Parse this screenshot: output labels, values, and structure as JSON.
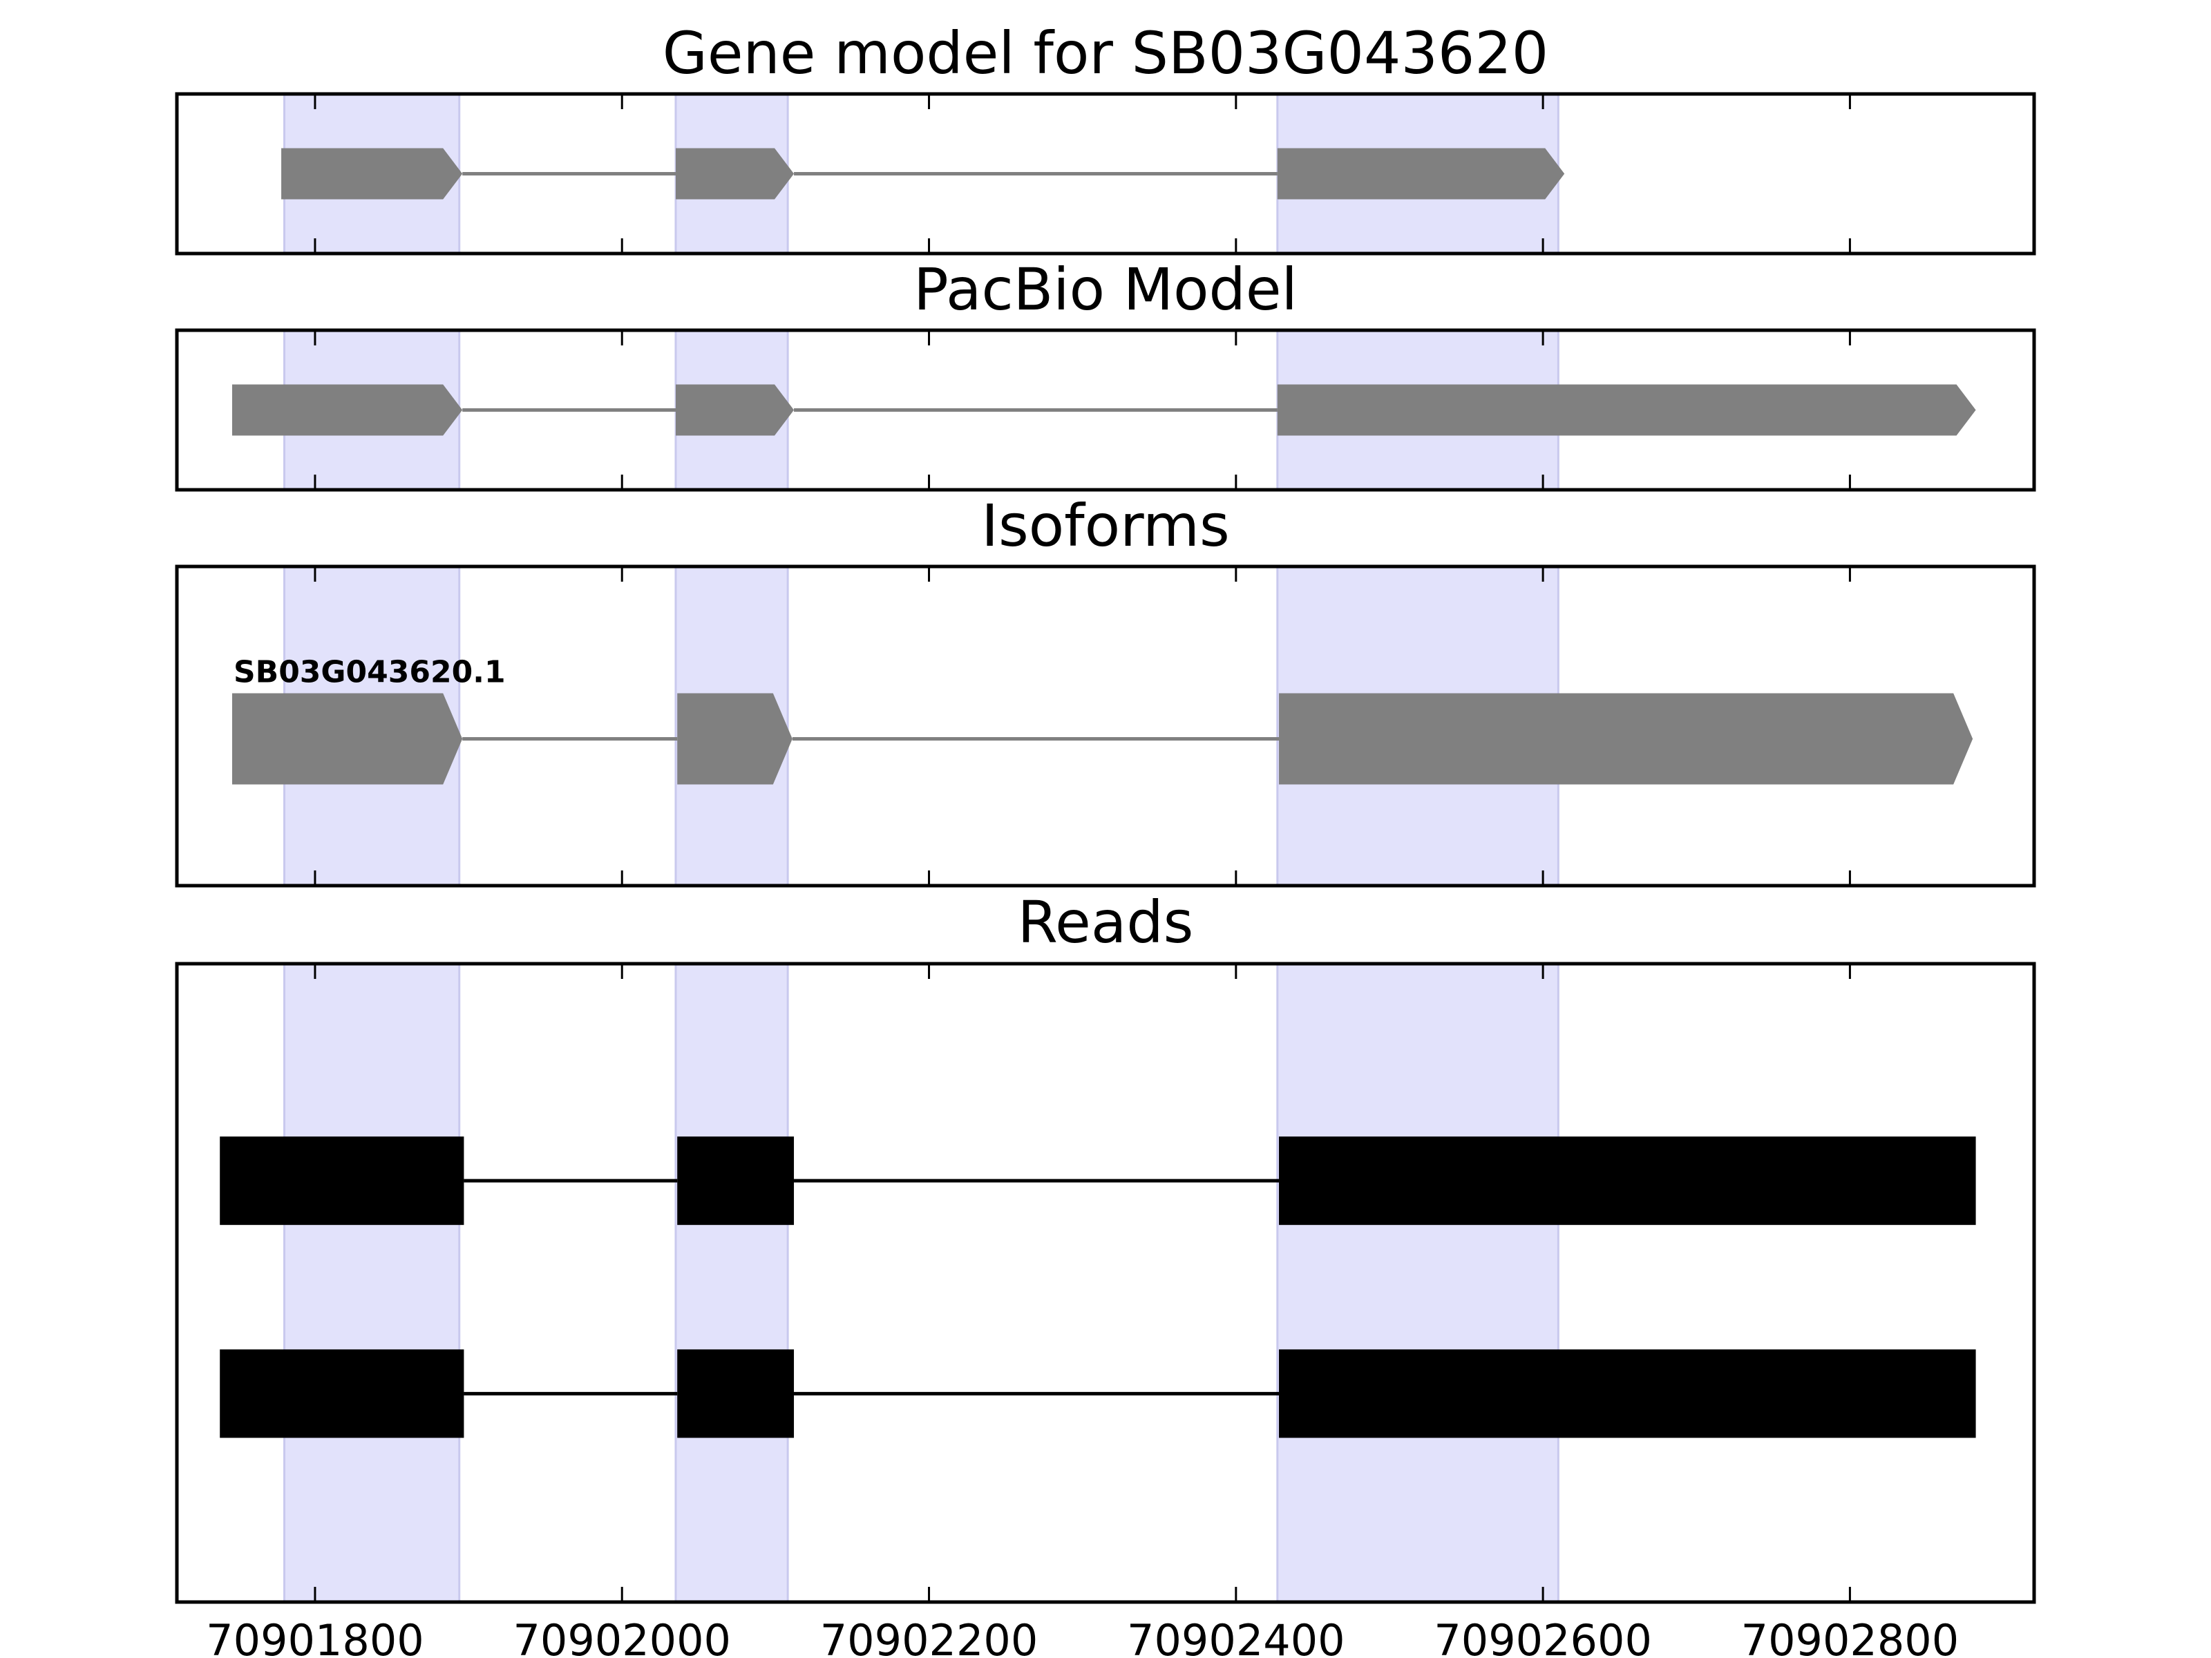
{
  "chart_data": {
    "type": "gene_model_tracks",
    "x_axis": {
      "xlim": [
        70901710,
        70902920
      ],
      "ticks": [
        70901800,
        70902000,
        70902200,
        70902400,
        70902600,
        70902800
      ],
      "tick_labels": [
        "70901800",
        "70902000",
        "70902200",
        "70902400",
        "70902600",
        "70902800"
      ]
    },
    "highlight_regions": [
      [
        70901780,
        70901894
      ],
      [
        70902035,
        70902108
      ],
      [
        70902427,
        70902610
      ]
    ],
    "colors": {
      "highlight": "#e2e2fb",
      "exon": "#808080",
      "intron": "#808080",
      "read": "#000000",
      "frame": "#000000"
    },
    "panels": [
      {
        "title": "Gene model for SB03G043620",
        "kind": "model",
        "strand": "+",
        "exons": [
          [
            70901778,
            70901896
          ],
          [
            70902035,
            70902112
          ],
          [
            70902427,
            70902614
          ]
        ]
      },
      {
        "title": "PacBio Model",
        "kind": "model",
        "strand": "+",
        "exons": [
          [
            70901746,
            70901896
          ],
          [
            70902035,
            70902112
          ],
          [
            70902427,
            70902882
          ]
        ]
      },
      {
        "title": "Isoforms",
        "kind": "isoforms",
        "isoforms": [
          {
            "name": "SB03G043620.1",
            "strand": "+",
            "exons": [
              [
                70901746,
                70901896
              ],
              [
                70902036,
                70902111
              ],
              [
                70902428,
                70902880
              ]
            ]
          }
        ]
      },
      {
        "title": "Reads",
        "kind": "reads",
        "reads": [
          {
            "exons": [
              [
                70901738,
                70901897
              ],
              [
                70902036,
                70902112
              ],
              [
                70902428,
                70902882
              ]
            ]
          },
          {
            "exons": [
              [
                70901738,
                70901897
              ],
              [
                70902036,
                70902112
              ],
              [
                70902428,
                70902882
              ]
            ]
          }
        ]
      }
    ]
  }
}
